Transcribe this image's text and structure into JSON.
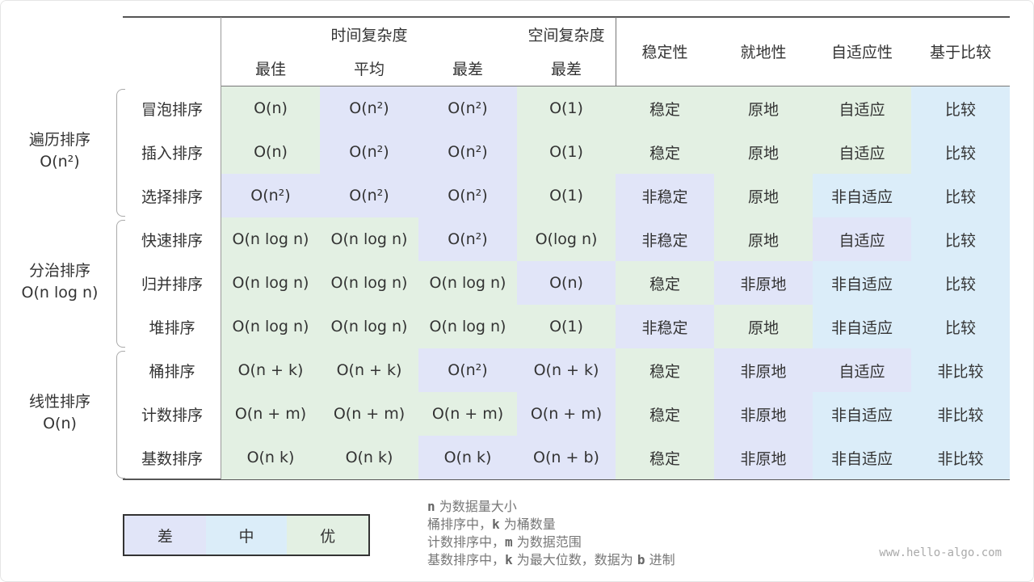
{
  "colors": {
    "worst": "#e1e5f8",
    "medium": "#dbedf9",
    "best": "#e3f0e3"
  },
  "header": {
    "time_complexity": "时间复杂度",
    "space_complexity": "空间复杂度",
    "best": "最佳",
    "average": "平均",
    "worst": "最差",
    "space_worst": "最差",
    "stable": "稳定性",
    "in_place": "就地性",
    "adaptive": "自适应性",
    "comparison": "基于比较"
  },
  "groups": [
    {
      "name": "遍历排序",
      "complexity": "O(n²)"
    },
    {
      "name": "分治排序",
      "complexity": "O(n log n)"
    },
    {
      "name": "线性排序",
      "complexity": "O(n)"
    }
  ],
  "rows": [
    {
      "name": "冒泡排序",
      "values": [
        "O(n)",
        "O(n²)",
        "O(n²)",
        "O(1)",
        "稳定",
        "原地",
        "自适应",
        "比较"
      ],
      "levels": [
        "g",
        "p",
        "p",
        "g",
        "g",
        "g",
        "g",
        "b"
      ]
    },
    {
      "name": "插入排序",
      "values": [
        "O(n)",
        "O(n²)",
        "O(n²)",
        "O(1)",
        "稳定",
        "原地",
        "自适应",
        "比较"
      ],
      "levels": [
        "g",
        "p",
        "p",
        "g",
        "g",
        "g",
        "g",
        "b"
      ]
    },
    {
      "name": "选择排序",
      "values": [
        "O(n²)",
        "O(n²)",
        "O(n²)",
        "O(1)",
        "非稳定",
        "原地",
        "非自适应",
        "比较"
      ],
      "levels": [
        "p",
        "p",
        "p",
        "g",
        "p",
        "g",
        "b",
        "b"
      ]
    },
    {
      "name": "快速排序",
      "values": [
        "O(n log n)",
        "O(n log n)",
        "O(n²)",
        "O(log n)",
        "非稳定",
        "原地",
        "自适应",
        "比较"
      ],
      "levels": [
        "g",
        "g",
        "p",
        "g",
        "p",
        "g",
        "p",
        "b"
      ]
    },
    {
      "name": "归并排序",
      "values": [
        "O(n log n)",
        "O(n log n)",
        "O(n log n)",
        "O(n)",
        "稳定",
        "非原地",
        "非自适应",
        "比较"
      ],
      "levels": [
        "g",
        "g",
        "g",
        "p",
        "g",
        "p",
        "b",
        "b"
      ]
    },
    {
      "name": "堆排序",
      "values": [
        "O(n log n)",
        "O(n log n)",
        "O(n log n)",
        "O(1)",
        "非稳定",
        "原地",
        "非自适应",
        "比较"
      ],
      "levels": [
        "g",
        "g",
        "g",
        "g",
        "p",
        "g",
        "b",
        "b"
      ]
    },
    {
      "name": "桶排序",
      "values": [
        "O(n + k)",
        "O(n + k)",
        "O(n²)",
        "O(n + k)",
        "稳定",
        "非原地",
        "自适应",
        "非比较"
      ],
      "levels": [
        "g",
        "g",
        "p",
        "p",
        "g",
        "p",
        "p",
        "b"
      ]
    },
    {
      "name": "计数排序",
      "values": [
        "O(n + m)",
        "O(n + m)",
        "O(n + m)",
        "O(n + m)",
        "稳定",
        "非原地",
        "非自适应",
        "非比较"
      ],
      "levels": [
        "g",
        "g",
        "g",
        "p",
        "g",
        "p",
        "b",
        "b"
      ]
    },
    {
      "name": "基数排序",
      "values": [
        "O(n k)",
        "O(n k)",
        "O(n k)",
        "O(n + b)",
        "稳定",
        "非原地",
        "非自适应",
        "非比较"
      ],
      "levels": [
        "g",
        "g",
        "p",
        "p",
        "g",
        "p",
        "b",
        "b"
      ]
    }
  ],
  "legend": {
    "worst": "差",
    "medium": "中",
    "best": "优"
  },
  "notes": [
    {
      "var": "n",
      "text": " 为数据量大小",
      "prefix": ""
    },
    {
      "prefix": "桶排序中，",
      "var": "k",
      "text": " 为桶数量"
    },
    {
      "prefix": "计数排序中，",
      "var": "m",
      "text": " 为数据范围"
    },
    {
      "prefix": "基数排序中，",
      "var": "k",
      "text": " 为最大位数，数据为 ",
      "var2": "b",
      "text2": " 进制"
    }
  ],
  "watermark": "www.hello-algo.com"
}
